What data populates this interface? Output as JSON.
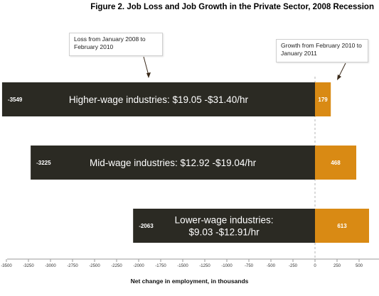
{
  "title": "Figure 2.  Job Loss and Job Growth in the Private Sector, 2008 Recession",
  "notes": {
    "loss": "Loss from January 2008 to February 2010",
    "growth": "Growth from February 2010 to January 2011"
  },
  "colors": {
    "loss": "#2b2a23",
    "growth": "#d98a14",
    "grid": "#b3b3b3"
  },
  "chart_data": {
    "type": "bar",
    "orientation": "horizontal",
    "stacked": true,
    "categories": [
      "Higher-wage industries: $19.05 -$31.40/hr",
      "Mid-wage industries: $12.92 -$19.04/hr",
      "Lower-wage industries: $9.03 -$12.91/hr"
    ],
    "category_lines": [
      [
        "Higher-wage industries: $19.05 -$31.40/hr"
      ],
      [
        "Mid-wage industries: $12.92 -$19.04/hr"
      ],
      [
        "Lower-wage industries:",
        "$9.03 -$12.91/hr"
      ]
    ],
    "series": [
      {
        "name": "Loss from January 2008 to February 2010",
        "values": [
          -3549,
          -3225,
          -2063
        ],
        "labels": [
          "-3549",
          "-3225",
          "-2063"
        ]
      },
      {
        "name": "Growth from February 2010 to January 2011",
        "values": [
          179,
          468,
          613
        ],
        "labels": [
          "179",
          "468",
          "613"
        ]
      }
    ],
    "xlabel": "Net change in employment, in thousands",
    "xlim": [
      -3500,
      500
    ],
    "xticks": [
      -3500,
      -3250,
      -3000,
      -2750,
      -2500,
      -2250,
      -2000,
      -1750,
      -1500,
      -1250,
      -1000,
      -750,
      -500,
      -250,
      0,
      250,
      500
    ],
    "grid": "vertical dashed line at 0"
  }
}
